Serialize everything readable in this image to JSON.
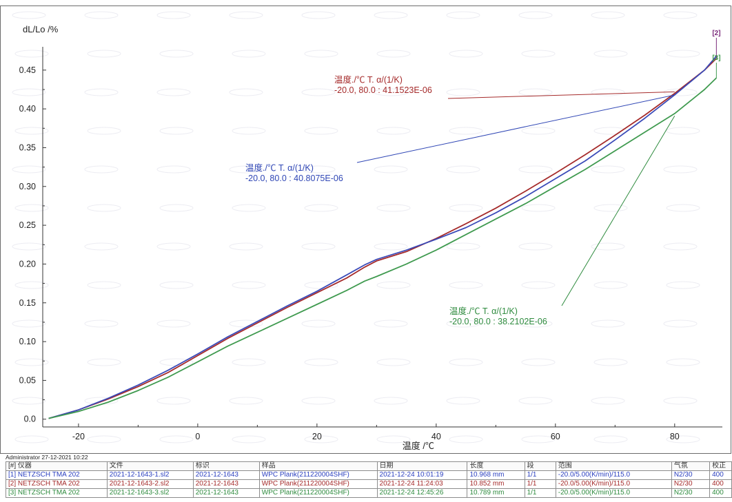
{
  "watermark_text": "",
  "chart_data": {
    "type": "line",
    "title": "",
    "ylabel": "dL/Lo /%",
    "xlabel": "温度 /℃",
    "xlim": [
      -26,
      88
    ],
    "ylim": [
      -0.01,
      0.48
    ],
    "x_ticks": [
      -20,
      0,
      20,
      40,
      60,
      80
    ],
    "y_ticks": [
      0.0,
      0.05,
      0.1,
      0.15,
      0.2,
      0.25,
      0.3,
      0.35,
      0.4,
      0.45
    ],
    "x_tick_labels": [
      "-20",
      "0",
      "20",
      "40",
      "60",
      "80"
    ],
    "y_tick_labels": [
      "0.0",
      "0.05",
      "0.10",
      "0.15",
      "0.20",
      "0.25",
      "0.30",
      "0.35",
      "0.40",
      "0.45"
    ],
    "grid": false,
    "series": [
      {
        "name": "[2]",
        "color": "#a52a2a",
        "x": [
          -25,
          -20,
          -15,
          -10,
          -5,
          0,
          5,
          10,
          15,
          20,
          25,
          28,
          30,
          35,
          40,
          45,
          50,
          55,
          60,
          65,
          70,
          75,
          80,
          85,
          87
        ],
        "y": [
          0.001,
          0.012,
          0.026,
          0.042,
          0.06,
          0.082,
          0.104,
          0.124,
          0.144,
          0.163,
          0.182,
          0.196,
          0.204,
          0.216,
          0.233,
          0.252,
          0.272,
          0.294,
          0.317,
          0.341,
          0.366,
          0.392,
          0.42,
          0.45,
          0.465
        ]
      },
      {
        "name": "[1]",
        "color": "#3a4ab8",
        "x": [
          -25,
          -20,
          -15,
          -10,
          -5,
          0,
          5,
          10,
          15,
          20,
          25,
          28,
          30,
          35,
          40,
          45,
          50,
          55,
          60,
          65,
          70,
          75,
          80,
          85,
          87
        ],
        "y": [
          0.001,
          0.012,
          0.027,
          0.044,
          0.063,
          0.084,
          0.106,
          0.126,
          0.146,
          0.165,
          0.186,
          0.199,
          0.206,
          0.218,
          0.232,
          0.247,
          0.266,
          0.287,
          0.31,
          0.333,
          0.36,
          0.388,
          0.418,
          0.45,
          0.468
        ]
      },
      {
        "name": "[3]",
        "color": "#3f9a4f",
        "x": [
          -25,
          -20,
          -15,
          -10,
          -5,
          0,
          5,
          10,
          15,
          20,
          25,
          28,
          30,
          35,
          40,
          45,
          50,
          55,
          60,
          65,
          70,
          75,
          80,
          85,
          87
        ],
        "y": [
          0.001,
          0.01,
          0.022,
          0.037,
          0.054,
          0.074,
          0.094,
          0.112,
          0.13,
          0.148,
          0.166,
          0.178,
          0.184,
          0.2,
          0.218,
          0.238,
          0.258,
          0.278,
          0.3,
          0.322,
          0.346,
          0.37,
          0.394,
          0.425,
          0.44
        ]
      }
    ],
    "curve_end_labels": [
      {
        "text": "[2]",
        "color": "#7b2a7b"
      },
      {
        "text": "[3]",
        "color": "#3f9a4f"
      }
    ],
    "annotations": [
      {
        "line1": "温度./℃        T. α/(1/K)",
        "line2": "-20.0, 80.0 :  41.1523E-06",
        "color": "#a52a2a",
        "x": 80,
        "y": 0.422
      },
      {
        "line1": "温度./℃        T. α/(1/K)",
        "line2": "-20.0, 80.0 :  40.8075E-06",
        "color": "#2f46b5",
        "x": 80,
        "y": 0.418
      },
      {
        "line1": "温度./℃        T. α/(1/K)",
        "line2": "-20.0, 80.0 :  38.2102E-06",
        "color": "#2e8b3e",
        "x": 80,
        "y": 0.391
      }
    ]
  },
  "footer": {
    "admin_line": "Administrator   27-12-2021 10:22",
    "table": {
      "headers": [
        "[#] 仪器",
        "文件",
        "标识",
        "样品",
        "日期",
        "长度",
        "段",
        "范围",
        "气氛",
        "校正"
      ],
      "rows": [
        {
          "color": "#2a3fbf",
          "cells": [
            "[1] NETZSCH TMA 202",
            "2021-12-1643-1.sl2",
            "2021-12-1643",
            "WPC Plank(211220004SHF)",
            "2021-12-24 10:01:19",
            "10.968 mm",
            "1/1",
            "-20.0/5.00(K/min)/115.0",
            "N2/30",
            "400"
          ]
        },
        {
          "color": "#a52a2a",
          "cells": [
            "[2] NETZSCH TMA 202",
            "2021-12-1643-2.sl2",
            "2021-12-1643",
            "WPC Plank(211220004SHF)",
            "2021-12-24 11:24:03",
            "10.852 mm",
            "1/1",
            "-20.0/5.00(K/min)/115.0",
            "N2/30",
            "400"
          ]
        },
        {
          "color": "#2e8b3e",
          "cells": [
            "[3] NETZSCH TMA 202",
            "2021-12-1643-3.sl2",
            "2021-12-1643",
            "WPC Plank(211220004SHF)",
            "2021-12-24 12:45:26",
            "10.789 mm",
            "1/1",
            "-20.0/5.00(K/min)/115.0",
            "N2/30",
            "400"
          ]
        }
      ]
    }
  }
}
